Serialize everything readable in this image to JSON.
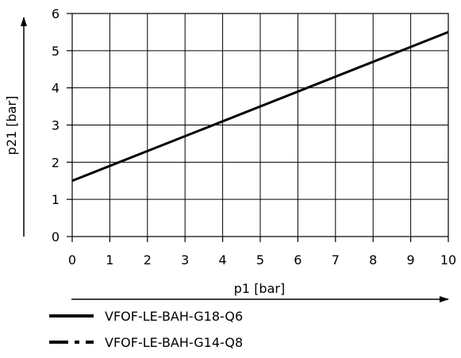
{
  "chart_data": {
    "type": "line",
    "title": "",
    "xlabel": "p1 [bar]",
    "ylabel": "p21 [bar]",
    "xlim": [
      0,
      10
    ],
    "ylim": [
      0,
      6
    ],
    "x_ticks": [
      0,
      1,
      2,
      3,
      4,
      5,
      6,
      7,
      8,
      9,
      10
    ],
    "y_ticks": [
      0,
      1,
      2,
      3,
      4,
      5,
      6
    ],
    "grid": true,
    "legend_position": "bottom-left",
    "series": [
      {
        "name": "VFOF-LE-BAH-G18-Q6",
        "style": "solid",
        "color": "#000000",
        "x": [
          0,
          10
        ],
        "y": [
          1.5,
          5.5
        ]
      },
      {
        "name": "VFOF-LE-BAH-G14-Q8",
        "style": "dash-dot",
        "color": "#000000",
        "x": [],
        "y": []
      }
    ]
  }
}
